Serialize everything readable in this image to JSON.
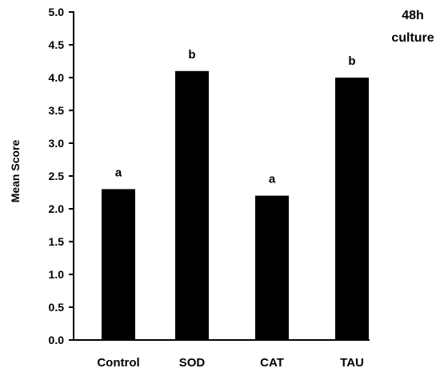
{
  "chart_data": {
    "type": "bar",
    "categories": [
      "Control",
      "SOD",
      "CAT",
      "TAU"
    ],
    "values": [
      2.3,
      4.1,
      2.2,
      4.0
    ],
    "significance_labels": [
      "a",
      "b",
      "a",
      "b"
    ],
    "ylabel": "Mean Score",
    "xlabel": "",
    "ylim": [
      0,
      5
    ],
    "yticks": [
      "0.0",
      "0.5",
      "1.0",
      "1.5",
      "2.0",
      "2.5",
      "3.0",
      "3.5",
      "4.0",
      "4.5",
      "5.0"
    ],
    "annotation": [
      "48h",
      "culture"
    ],
    "grid": false,
    "bar_color": "#000000"
  }
}
